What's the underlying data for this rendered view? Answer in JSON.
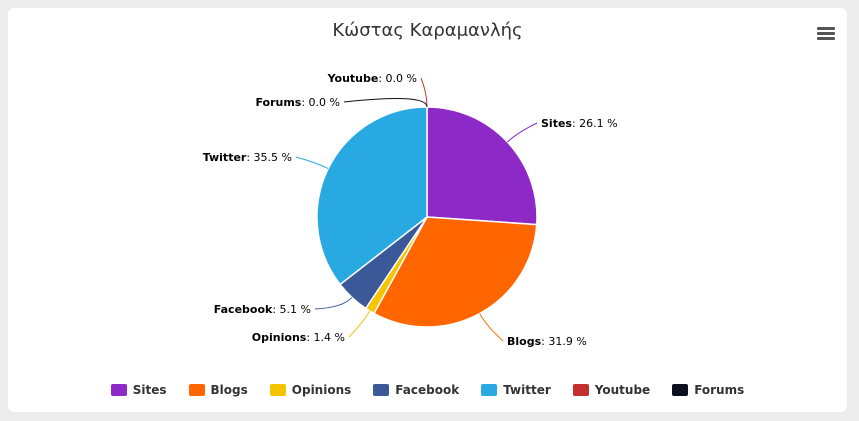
{
  "chart_data": {
    "type": "pie",
    "title": "Κώστας Καραμανλής",
    "value_suffix": " %",
    "slices": [
      {
        "name": "Sites",
        "value": 26.1,
        "label": "26.1 %",
        "color": "#8d2ac7"
      },
      {
        "name": "Blogs",
        "value": 31.9,
        "label": "31.9 %",
        "color": "#ff6600"
      },
      {
        "name": "Opinions",
        "value": 1.4,
        "label": "1.4 %",
        "color": "#f5c400"
      },
      {
        "name": "Facebook",
        "value": 5.1,
        "label": "5.1 %",
        "color": "#3b5998"
      },
      {
        "name": "Twitter",
        "value": 35.5,
        "label": "35.5 %",
        "color": "#29a9e1"
      },
      {
        "name": "Youtube",
        "value": 0.0,
        "label": "0.0 %",
        "color": "#c4302b"
      },
      {
        "name": "Forums",
        "value": 0.0,
        "label": "0.0 %",
        "color": "#0b0f1f"
      }
    ],
    "legend": {
      "position": "bottom"
    }
  },
  "menu": {
    "icon": "hamburger-menu-icon"
  }
}
